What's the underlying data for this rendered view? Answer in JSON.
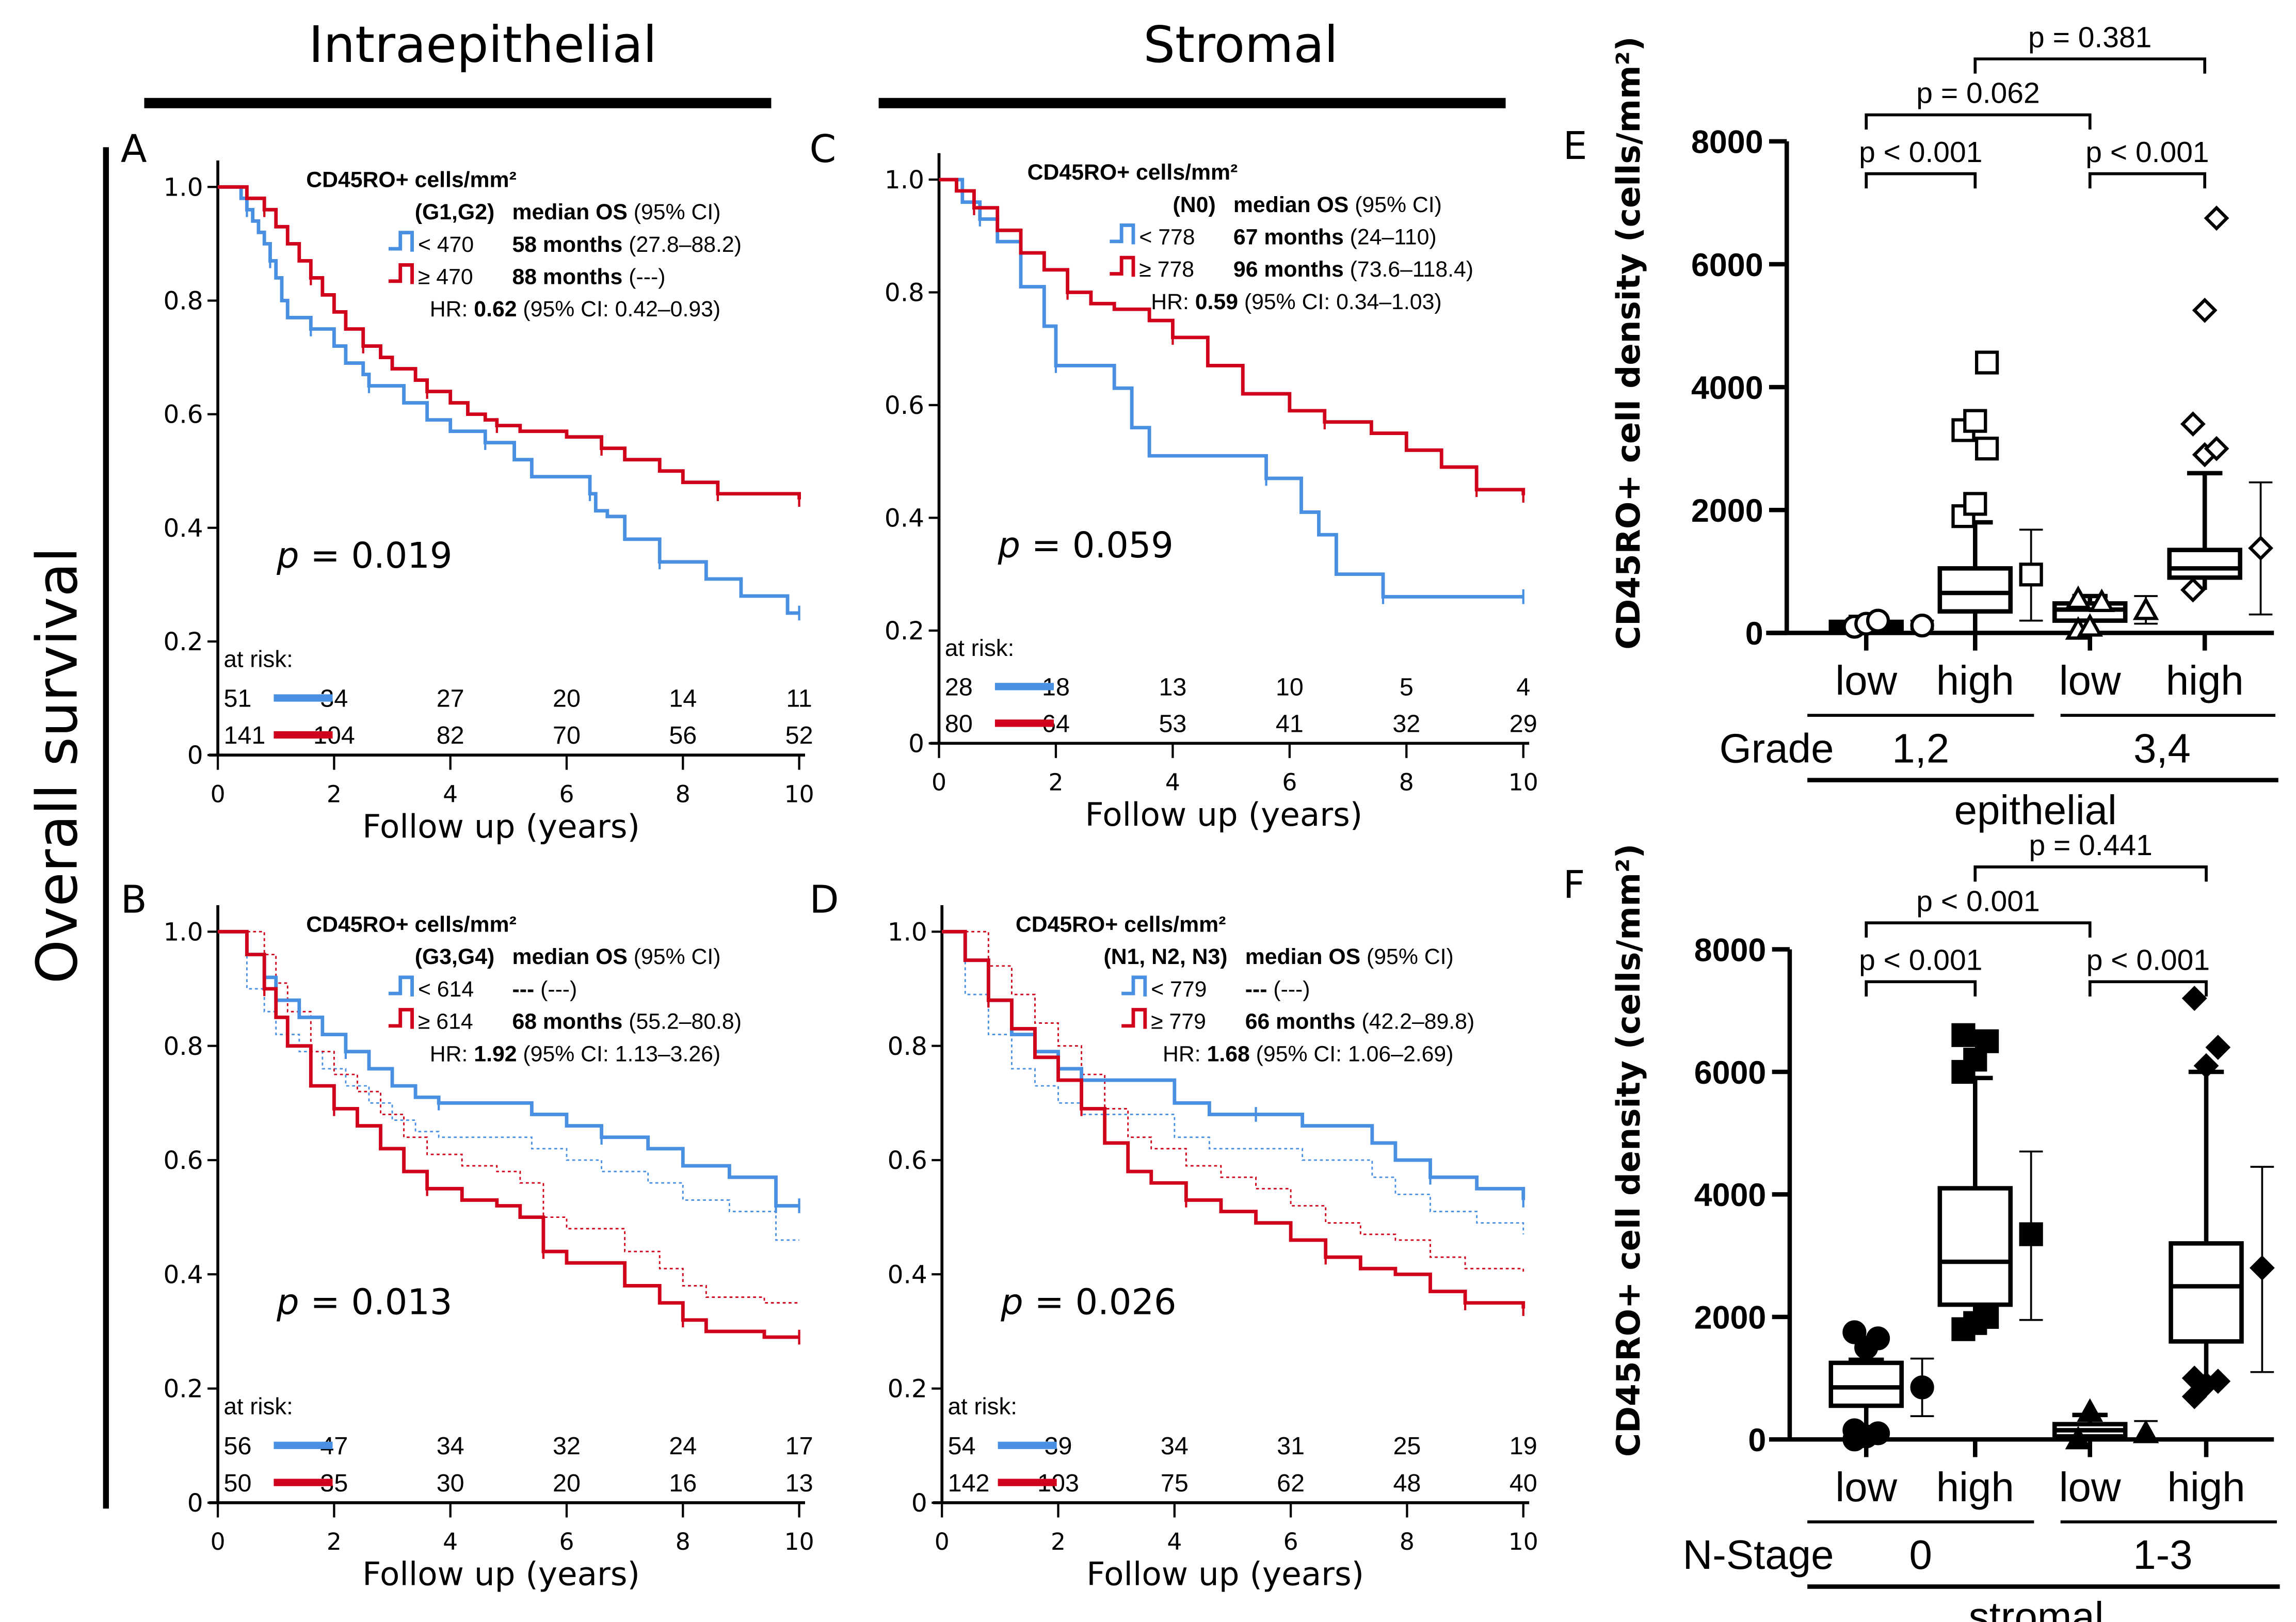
{
  "figure": {
    "section_titles": [
      "Intraepithelial",
      "Stromal"
    ],
    "row_label": "Overall survival",
    "colors": {
      "low": "#4A90E2",
      "high": "#D0021B"
    }
  },
  "chart_data": [
    {
      "panel": "A",
      "type": "line",
      "subtype": "kaplan-meier",
      "title": "CD45RO+ cells/mm²",
      "group_label": "(G1,G2)",
      "header": "median OS (95% CI)",
      "xlabel": "Follow up (years)",
      "ylabel": "Overall survival",
      "xlim": [
        0,
        10
      ],
      "ylim": [
        0,
        1.0
      ],
      "xticks": [
        "0",
        "2",
        "4",
        "6",
        "8",
        "10"
      ],
      "yticks": [
        "0",
        "0.2",
        "0.4",
        "0.6",
        "0.8",
        "1.0"
      ],
      "p_value": "p = 0.019",
      "hr": {
        "label": "HR:",
        "value": "0.62",
        "ci": "(95% CI: 0.42–0.93)"
      },
      "series": [
        {
          "name": "< 470",
          "color": "#4A90E2",
          "median": "58 months",
          "ci": "(27.8–88.2)",
          "x": [
            0,
            0.4,
            0.5,
            0.6,
            0.7,
            0.8,
            0.9,
            1.0,
            1.1,
            1.2,
            1.6,
            2.0,
            2.2,
            2.5,
            2.6,
            3.2,
            3.6,
            4.0,
            4.6,
            4.8,
            5.1,
            5.4,
            6.4,
            6.5,
            6.7,
            7.0,
            7.6,
            8.4,
            9.0,
            9.8,
            10
          ],
          "y": [
            1.0,
            0.98,
            0.96,
            0.94,
            0.92,
            0.9,
            0.87,
            0.84,
            0.8,
            0.77,
            0.75,
            0.72,
            0.69,
            0.67,
            0.65,
            0.62,
            0.59,
            0.57,
            0.55,
            0.55,
            0.52,
            0.49,
            0.46,
            0.43,
            0.42,
            0.38,
            0.34,
            0.31,
            0.28,
            0.25,
            0.25
          ],
          "at_risk": [
            51,
            34,
            27,
            20,
            14,
            11
          ]
        },
        {
          "name": "≥ 470",
          "color": "#D0021B",
          "median": "88 months",
          "ci": "(---)",
          "x": [
            0,
            0.5,
            0.8,
            1.0,
            1.2,
            1.4,
            1.6,
            1.8,
            2.0,
            2.2,
            2.5,
            2.8,
            3.0,
            3.4,
            3.6,
            4.0,
            4.3,
            4.6,
            4.8,
            5.2,
            5.6,
            6.0,
            6.6,
            7.0,
            7.6,
            8.0,
            8.6,
            9.0,
            10
          ],
          "y": [
            1.0,
            0.98,
            0.96,
            0.93,
            0.9,
            0.87,
            0.84,
            0.81,
            0.78,
            0.75,
            0.72,
            0.7,
            0.68,
            0.66,
            0.64,
            0.62,
            0.6,
            0.59,
            0.58,
            0.57,
            0.57,
            0.56,
            0.54,
            0.52,
            0.5,
            0.48,
            0.46,
            0.46,
            0.45
          ],
          "at_risk": [
            141,
            104,
            82,
            70,
            56,
            52
          ]
        }
      ]
    },
    {
      "panel": "C",
      "type": "line",
      "subtype": "kaplan-meier",
      "title": "CD45RO+ cells/mm²",
      "group_label": "(N0)",
      "header": "median OS (95% CI)",
      "xlabel": "Follow up (years)",
      "xlim": [
        0,
        10
      ],
      "ylim": [
        0,
        1.0
      ],
      "xticks": [
        "0",
        "2",
        "4",
        "6",
        "8",
        "10"
      ],
      "yticks": [
        "0",
        "0.2",
        "0.4",
        "0.6",
        "0.8",
        "1.0"
      ],
      "p_value": "p = 0.059",
      "hr": {
        "label": "HR:",
        "value": "0.59",
        "ci": "(95% CI: 0.34–1.03)"
      },
      "series": [
        {
          "name": "< 778",
          "color": "#4A90E2",
          "median": "67 months",
          "ci": "(24–110)",
          "x": [
            0,
            0.4,
            0.7,
            1.0,
            1.4,
            1.8,
            2.0,
            3.0,
            3.3,
            3.6,
            5.6,
            6.2,
            6.5,
            6.8,
            7.6,
            10
          ],
          "y": [
            1.0,
            0.96,
            0.93,
            0.89,
            0.81,
            0.74,
            0.67,
            0.63,
            0.56,
            0.51,
            0.47,
            0.41,
            0.37,
            0.3,
            0.26,
            0.26
          ],
          "at_risk": [
            28,
            18,
            13,
            10,
            5,
            4
          ]
        },
        {
          "name": "≥ 778",
          "color": "#D0021B",
          "median": "96 months",
          "ci": "(73.6–118.4)",
          "x": [
            0,
            0.3,
            0.6,
            1.0,
            1.4,
            1.8,
            2.2,
            2.6,
            3.0,
            3.6,
            4.0,
            4.6,
            5.2,
            6.0,
            6.6,
            7.4,
            8.0,
            8.6,
            9.2,
            10
          ],
          "y": [
            1.0,
            0.98,
            0.95,
            0.91,
            0.87,
            0.84,
            0.8,
            0.78,
            0.77,
            0.75,
            0.72,
            0.67,
            0.62,
            0.59,
            0.57,
            0.55,
            0.52,
            0.49,
            0.45,
            0.44
          ],
          "at_risk": [
            80,
            64,
            53,
            41,
            32,
            29
          ]
        }
      ]
    },
    {
      "panel": "B",
      "type": "line",
      "subtype": "kaplan-meier",
      "title": "CD45RO+ cells/mm²",
      "group_label": "(G3,G4)",
      "header": "median OS (95% CI)",
      "xlabel": "Follow up (years)",
      "xlim": [
        0,
        10
      ],
      "ylim": [
        0,
        1.0
      ],
      "xticks": [
        "0",
        "2",
        "4",
        "6",
        "8",
        "10"
      ],
      "yticks": [
        "0",
        "0.2",
        "0.4",
        "0.6",
        "0.8",
        "1.0"
      ],
      "p_value": "p = 0.013",
      "hr": {
        "label": "HR:",
        "value": "1.92",
        "ci": "(95% CI: 1.13–3.26)"
      },
      "series": [
        {
          "name": "< 614",
          "color": "#4A90E2",
          "median": "---",
          "ci": "(---)",
          "x": [
            0,
            0.5,
            0.8,
            1.0,
            1.4,
            1.8,
            2.2,
            2.6,
            3.0,
            3.4,
            3.8,
            4.6,
            5.4,
            6.0,
            6.6,
            7.4,
            8.0,
            8.8,
            9.6,
            10
          ],
          "y": [
            1.0,
            0.96,
            0.92,
            0.88,
            0.85,
            0.82,
            0.79,
            0.76,
            0.73,
            0.71,
            0.7,
            0.7,
            0.68,
            0.66,
            0.64,
            0.62,
            0.59,
            0.57,
            0.52,
            0.52
          ],
          "at_risk": [
            56,
            47,
            34,
            32,
            24,
            17
          ]
        },
        {
          "name": "≥ 614",
          "color": "#D0021B",
          "median": "68 months",
          "ci": "(55.2–80.8)",
          "x": [
            0,
            0.5,
            0.8,
            1.0,
            1.2,
            1.6,
            2.0,
            2.4,
            2.8,
            3.2,
            3.6,
            4.2,
            4.8,
            5.2,
            5.6,
            6.0,
            7.0,
            7.6,
            8.0,
            8.4,
            9.4,
            10
          ],
          "y": [
            1.0,
            0.96,
            0.9,
            0.85,
            0.8,
            0.73,
            0.69,
            0.66,
            0.62,
            0.58,
            0.55,
            0.53,
            0.52,
            0.5,
            0.44,
            0.42,
            0.38,
            0.35,
            0.32,
            0.3,
            0.29,
            0.29
          ],
          "at_risk": [
            50,
            35,
            30,
            20,
            16,
            13
          ]
        }
      ]
    },
    {
      "panel": "D",
      "type": "line",
      "subtype": "kaplan-meier",
      "title": "CD45RO+ cells/mm²",
      "group_label": "(N1, N2, N3)",
      "header": "median OS (95% CI)",
      "xlabel": "Follow up (years)",
      "xlim": [
        0,
        10
      ],
      "ylim": [
        0,
        1.0
      ],
      "xticks": [
        "0",
        "2",
        "4",
        "6",
        "8",
        "10"
      ],
      "yticks": [
        "0",
        "0.2",
        "0.4",
        "0.6",
        "0.8",
        "1.0"
      ],
      "p_value": "p = 0.026",
      "hr": {
        "label": "HR:",
        "value": "1.68",
        "ci": "(95% CI: 1.06–2.69)"
      },
      "series": [
        {
          "name": "< 779",
          "color": "#4A90E2",
          "median": "---",
          "ci": "(---)",
          "x": [
            0,
            0.4,
            0.8,
            1.2,
            1.6,
            2.0,
            2.4,
            3.0,
            4.0,
            4.6,
            5.4,
            6.2,
            7.4,
            7.8,
            8.4,
            9.2,
            10
          ],
          "y": [
            1.0,
            0.95,
            0.88,
            0.82,
            0.79,
            0.76,
            0.74,
            0.74,
            0.7,
            0.68,
            0.68,
            0.66,
            0.63,
            0.6,
            0.57,
            0.55,
            0.53
          ],
          "at_risk": [
            54,
            39,
            34,
            31,
            25,
            19
          ]
        },
        {
          "name": "≥ 779",
          "color": "#D0021B",
          "median": "66 months",
          "ci": "(42.2–89.8)",
          "x": [
            0,
            0.4,
            0.8,
            1.2,
            1.6,
            2.0,
            2.4,
            2.8,
            3.2,
            3.6,
            4.2,
            4.8,
            5.4,
            6.0,
            6.6,
            7.2,
            7.8,
            8.4,
            9.0,
            10
          ],
          "y": [
            1.0,
            0.95,
            0.88,
            0.83,
            0.78,
            0.74,
            0.69,
            0.63,
            0.58,
            0.56,
            0.53,
            0.51,
            0.49,
            0.46,
            0.43,
            0.41,
            0.4,
            0.37,
            0.35,
            0.34
          ],
          "at_risk": [
            142,
            103,
            75,
            62,
            48,
            40
          ]
        }
      ]
    },
    {
      "panel": "E",
      "type": "box",
      "ylabel": "CD45RO+ cell density (cells/mm²)",
      "ylim": [
        0,
        8000
      ],
      "yticks": [
        "0",
        "2000",
        "4000",
        "6000",
        "8000"
      ],
      "categories": [
        "low",
        "high",
        "low",
        "high"
      ],
      "group_label": "Grade",
      "groups": [
        "1,2",
        "3,4"
      ],
      "super_group": "epithelial",
      "markers": [
        "circle-open",
        "square-open",
        "triangle-open",
        "diamond-open"
      ],
      "boxes": [
        {
          "q1": 60,
          "median": 120,
          "q3": 180,
          "whisker_low": 0,
          "whisker_high": 260,
          "mean": 120,
          "sd_low": 60,
          "sd_high": 200,
          "outliers": [
            100,
            150,
            200
          ]
        },
        {
          "q1": 350,
          "median": 650,
          "q3": 1050,
          "whisker_low": 0,
          "whisker_high": 1800,
          "mean": 950,
          "sd_low": 200,
          "sd_high": 1680,
          "outliers": [
            1900,
            2100,
            3000,
            3300,
            3450,
            4400
          ]
        },
        {
          "q1": 200,
          "median": 380,
          "q3": 480,
          "whisker_low": 0,
          "whisker_high": 600,
          "mean": 370,
          "sd_low": 150,
          "sd_high": 600,
          "outliers": [
            50,
            100,
            500,
            550
          ]
        },
        {
          "q1": 900,
          "median": 1050,
          "q3": 1350,
          "whisker_low": 700,
          "whisker_high": 2600,
          "mean": 1380,
          "sd_low": 300,
          "sd_high": 2450,
          "outliers": [
            700,
            2900,
            3000,
            3400,
            5250,
            6750
          ]
        }
      ],
      "comparisons": [
        {
          "label": "p < 0.001",
          "from": 0,
          "to": 1,
          "level": 1
        },
        {
          "label": "p < 0.001",
          "from": 2,
          "to": 3,
          "level": 1
        },
        {
          "label": "p = 0.062",
          "from": 0,
          "to": 2,
          "level": 2
        },
        {
          "label": "p = 0.381",
          "from": 1,
          "to": 3,
          "level": 3
        }
      ]
    },
    {
      "panel": "F",
      "type": "box",
      "ylabel": "CD45RO+ cell density (cells/mm²)",
      "ylim": [
        0,
        8000
      ],
      "yticks": [
        "0",
        "2000",
        "4000",
        "6000",
        "8000"
      ],
      "categories": [
        "low",
        "high",
        "low",
        "high"
      ],
      "group_label": "N-Stage",
      "groups": [
        "0",
        "1-3"
      ],
      "super_group": "stromal",
      "markers": [
        "circle-filled",
        "square-filled",
        "triangle-filled",
        "diamond-filled"
      ],
      "boxes": [
        {
          "q1": 550,
          "median": 850,
          "q3": 1250,
          "whisker_low": 200,
          "whisker_high": 1300,
          "mean": 850,
          "sd_low": 380,
          "sd_high": 1320,
          "outliers": [
            0,
            50,
            100,
            150,
            1500,
            1650,
            1750
          ]
        },
        {
          "q1": 2200,
          "median": 2900,
          "q3": 4100,
          "whisker_low": 2000,
          "whisker_high": 5900,
          "mean": 3350,
          "sd_low": 1950,
          "sd_high": 4700,
          "outliers": [
            1800,
            1900,
            2000,
            6000,
            6200,
            6500,
            6600
          ]
        },
        {
          "q1": 50,
          "median": 150,
          "q3": 250,
          "whisker_low": 0,
          "whisker_high": 400,
          "mean": 100,
          "sd_low": 0,
          "sd_high": 300,
          "outliers": [
            0,
            450
          ]
        },
        {
          "q1": 1600,
          "median": 2500,
          "q3": 3200,
          "whisker_low": 1000,
          "whisker_high": 6000,
          "mean": 2800,
          "sd_low": 1100,
          "sd_high": 4450,
          "outliers": [
            700,
            900,
            950,
            1000,
            6100,
            6400,
            7200
          ]
        }
      ],
      "comparisons": [
        {
          "label": "p < 0.001",
          "from": 0,
          "to": 1,
          "level": 1
        },
        {
          "label": "p < 0.001",
          "from": 2,
          "to": 3,
          "level": 1
        },
        {
          "label": "p < 0.001",
          "from": 0,
          "to": 2,
          "level": 2
        },
        {
          "label": "p = 0.441",
          "from": 1,
          "to": 3,
          "level": 3
        }
      ]
    }
  ],
  "labels": {
    "at_risk": "at risk:",
    "panel_letters": [
      "A",
      "C",
      "B",
      "D",
      "E",
      "F"
    ]
  }
}
